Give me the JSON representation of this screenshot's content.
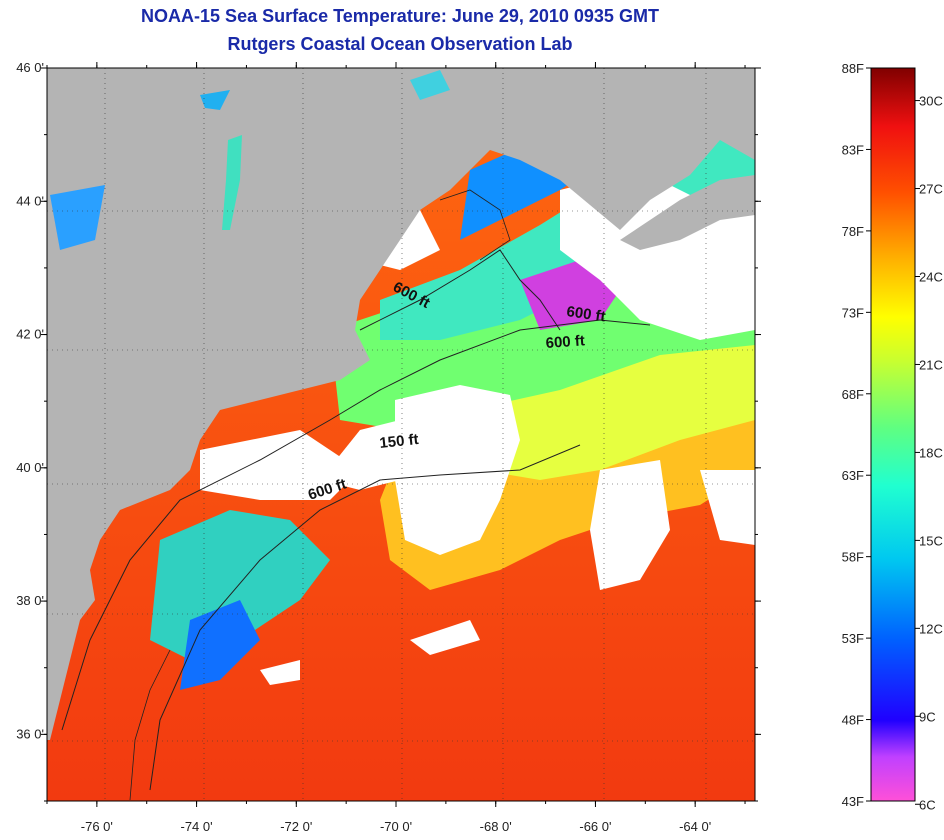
{
  "title_line1": "NOAA-15 Sea Surface Temperature:  June 29, 2010 0935 GMT",
  "title_line2": "Rutgers Coastal Ocean Observation Lab",
  "axes": {
    "lat_ticks": [
      {
        "value": 46,
        "label": "46 0'"
      },
      {
        "value": 44,
        "label": "44 0'"
      },
      {
        "value": 42,
        "label": "42 0'"
      },
      {
        "value": 40,
        "label": "40 0'"
      },
      {
        "value": 38,
        "label": "38 0'"
      },
      {
        "value": 36,
        "label": "36 0'"
      }
    ],
    "lon_ticks": [
      {
        "value": -76,
        "label": "-76 0'"
      },
      {
        "value": -74,
        "label": "-74 0'"
      },
      {
        "value": -72,
        "label": "-72 0'"
      },
      {
        "value": -70,
        "label": "-70 0'"
      },
      {
        "value": -68,
        "label": "-68 0'"
      },
      {
        "value": -66,
        "label": "-66 0'"
      },
      {
        "value": -64,
        "label": "-64 0'"
      }
    ],
    "lon_range": [
      -77.0,
      -62.8
    ],
    "lat_range": [
      35.0,
      46.0
    ]
  },
  "contour_labels": [
    {
      "text": "600 ft"
    },
    {
      "text": "600 ft"
    },
    {
      "text": "600 ft"
    },
    {
      "text": "150 ft"
    },
    {
      "text": "600 ft"
    }
  ],
  "colorbar": {
    "fahrenheit": [
      "88F",
      "83F",
      "78F",
      "73F",
      "68F",
      "63F",
      "58F",
      "53F",
      "48F",
      "43F"
    ],
    "celsius": [
      "30C",
      "27C",
      "24C",
      "21C",
      "18C",
      "15C",
      "12C",
      "9C",
      "6C"
    ]
  },
  "colors": {
    "land": "#b4b4b4",
    "cloud": "#ffffff",
    "title": "#1a2aa8"
  }
}
